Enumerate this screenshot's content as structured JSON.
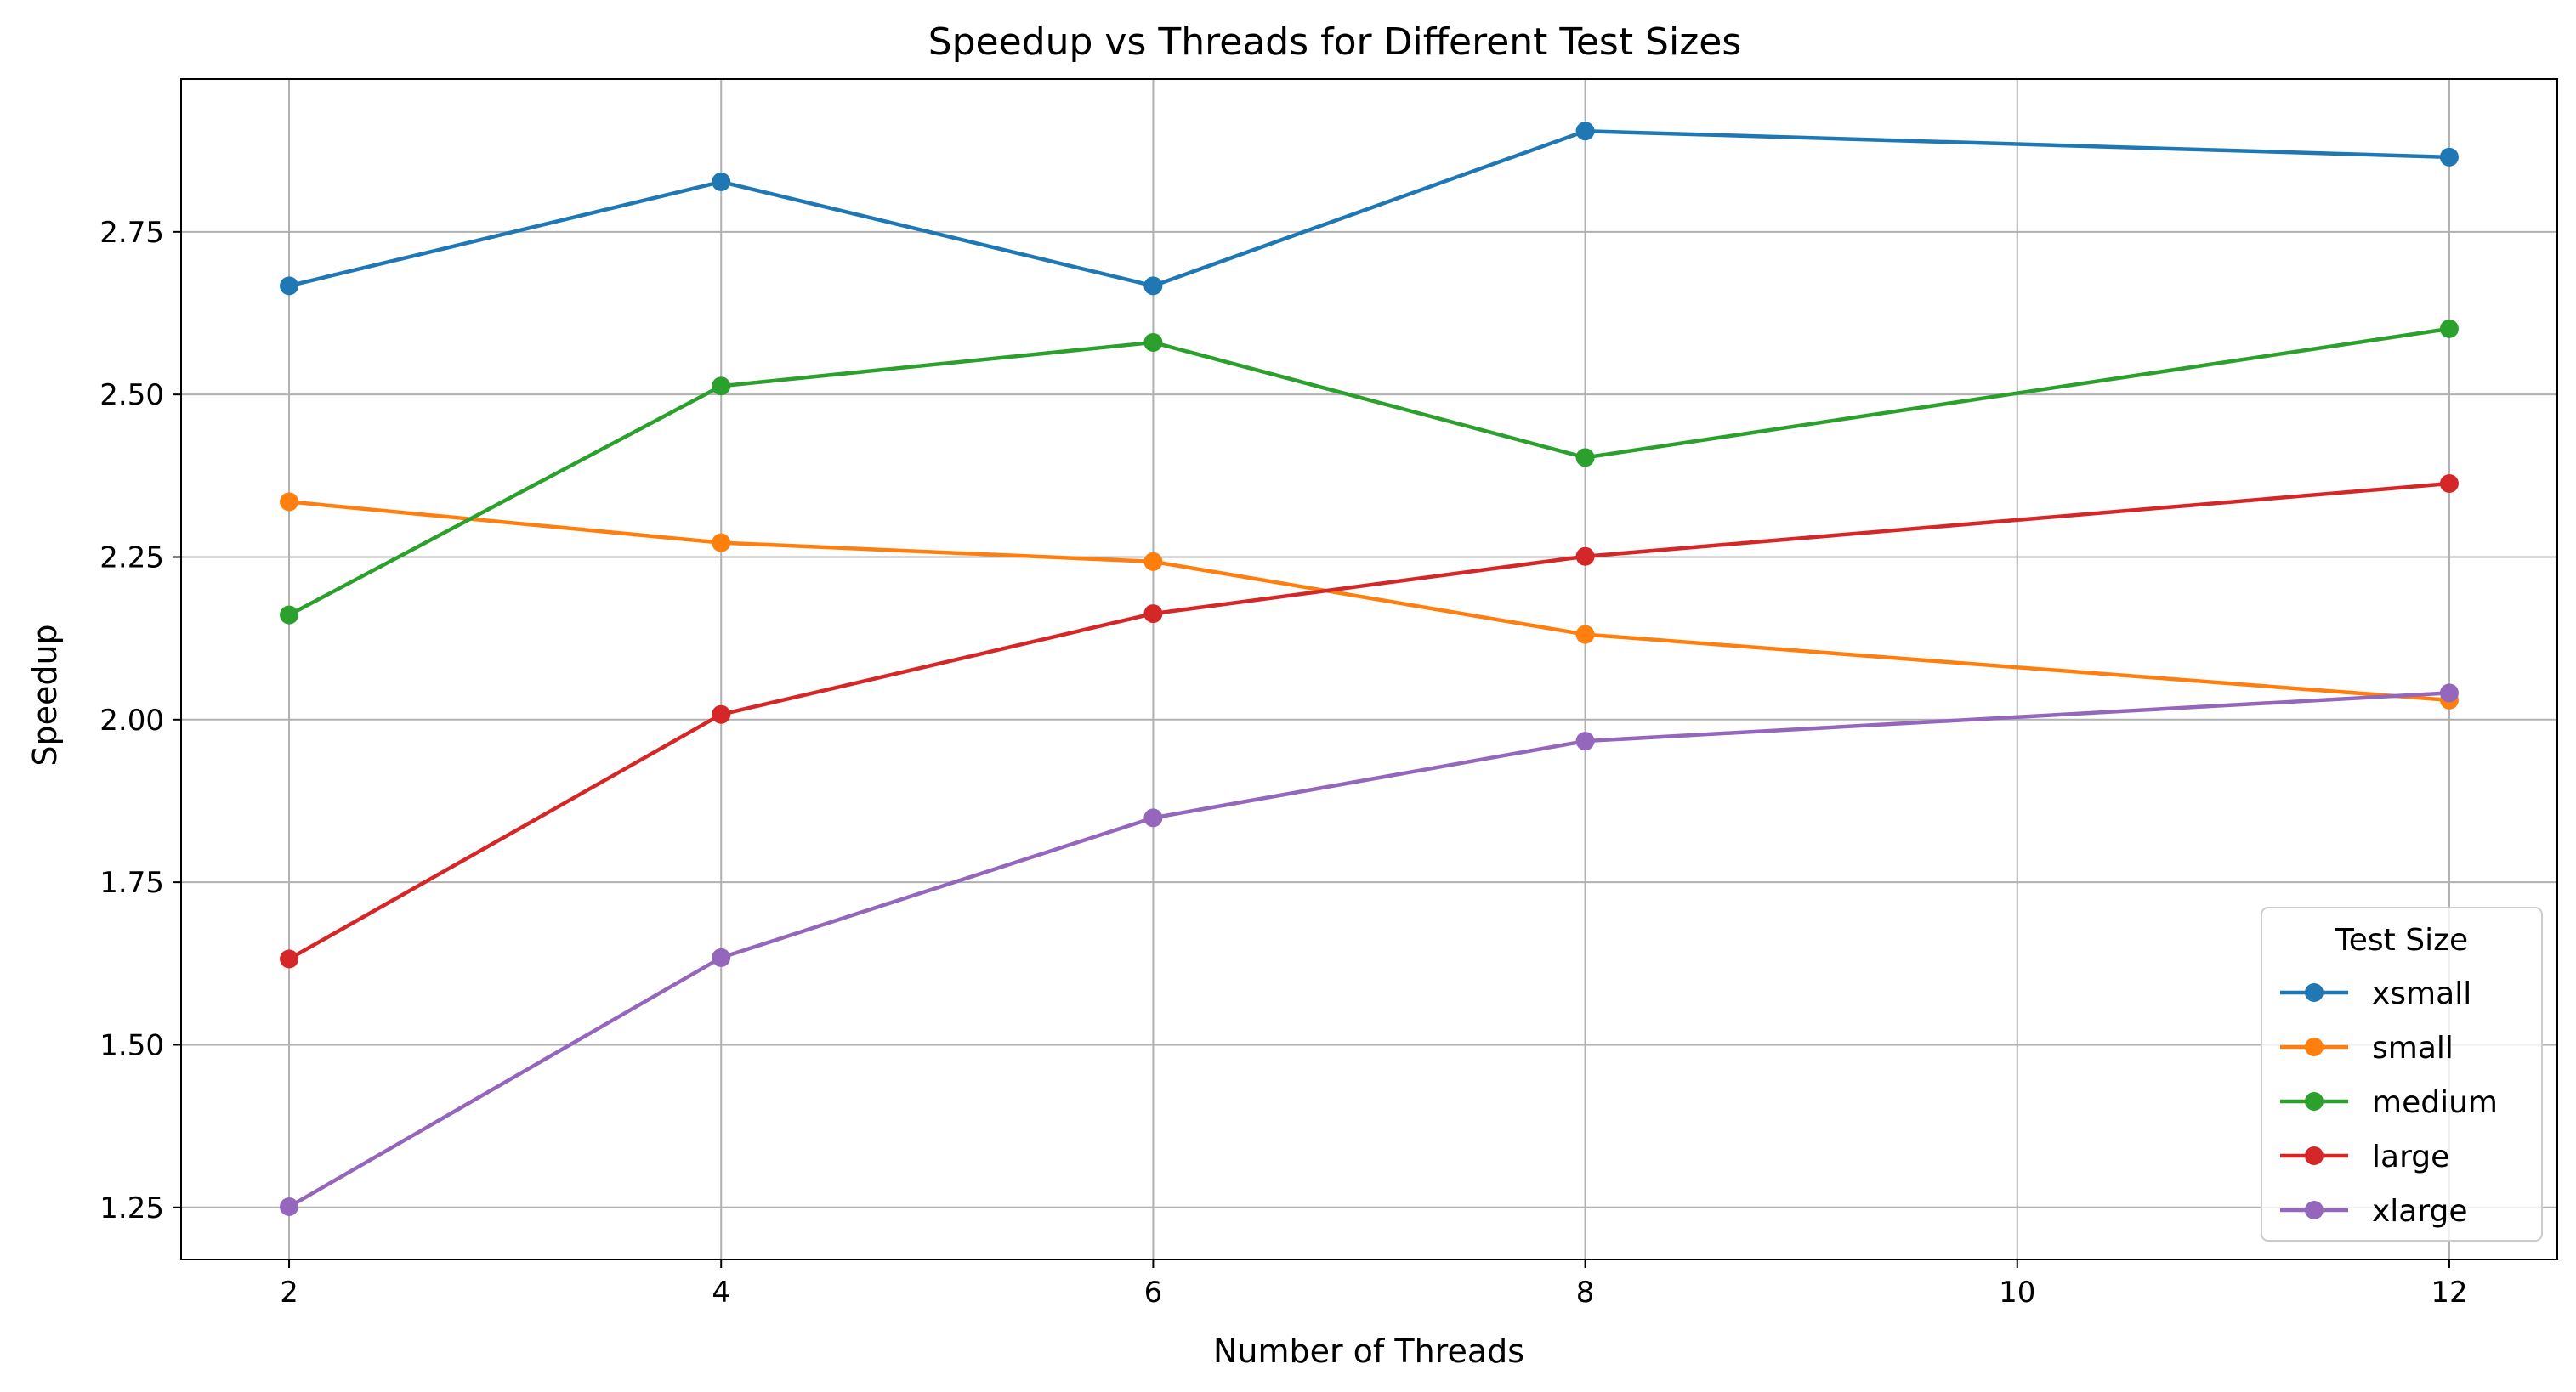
{
  "chart_data": {
    "type": "line",
    "title": "Speedup vs Threads for Different Test Sizes",
    "xlabel": "Number of Threads",
    "ylabel": "Speedup",
    "x": [
      2,
      4,
      6,
      8,
      12
    ],
    "xlim": [
      1.5,
      12.5
    ],
    "ylim": [
      1.17,
      2.985
    ],
    "xticks": [
      2,
      4,
      6,
      8,
      10,
      12
    ],
    "yticks": [
      1.25,
      1.5,
      1.75,
      2.0,
      2.25,
      2.5,
      2.75
    ],
    "ytick_labels": [
      "1.25",
      "1.50",
      "1.75",
      "2.00",
      "2.25",
      "2.50",
      "2.75"
    ],
    "grid": true,
    "legend": {
      "title": "Test Size",
      "placement": "lower-right"
    },
    "series": [
      {
        "name": "xsmall",
        "color": "#1f77b4",
        "values": [
          2.667,
          2.827,
          2.667,
          2.905,
          2.865
        ]
      },
      {
        "name": "small",
        "color": "#ff7f0e",
        "values": [
          2.335,
          2.272,
          2.243,
          2.131,
          2.03
        ]
      },
      {
        "name": "medium",
        "color": "#2ca02c",
        "values": [
          2.161,
          2.513,
          2.58,
          2.403,
          2.601
        ]
      },
      {
        "name": "large",
        "color": "#d62728",
        "values": [
          1.632,
          2.008,
          2.163,
          2.251,
          2.363
        ]
      },
      {
        "name": "xlarge",
        "color": "#9467bd",
        "values": [
          1.251,
          1.634,
          1.849,
          1.967,
          2.041
        ]
      }
    ]
  }
}
